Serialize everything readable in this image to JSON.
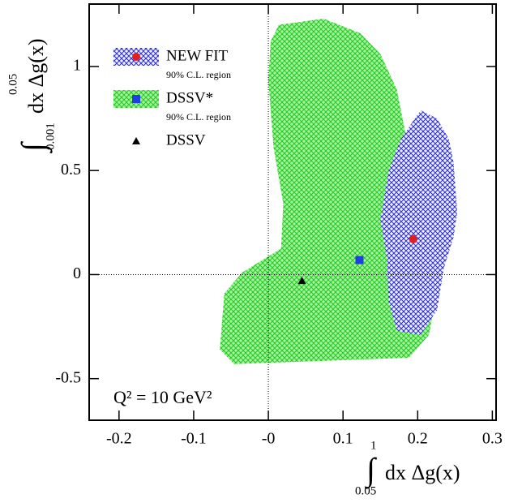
{
  "chart_data": {
    "type": "scatter",
    "xlim": [
      -0.24,
      0.305
    ],
    "ylim": [
      -0.7,
      1.3
    ],
    "xticks": [
      -0.2,
      -0.1,
      {
        "value": 0,
        "label": "-0"
      },
      0.1,
      0.2,
      0.3
    ],
    "yticks": [
      -0.5,
      0,
      0.5,
      1
    ],
    "zero_lines": true,
    "legend": "upper left",
    "x_label": {
      "symbol": "∫",
      "lower": "0.05",
      "upper": "1",
      "text": "dx Δg(x)"
    },
    "y_label": {
      "symbol": "∫",
      "lower": "0.001",
      "upper": "0.05",
      "text": "dx Δg(x)"
    },
    "annotation": "Q² = 10 GeV²",
    "series": [
      {
        "name": "DSSV*",
        "sublabel": "90% C.L. region",
        "color": "#1f3fe0",
        "marker": "square",
        "x": [
          0.122
        ],
        "values": [
          0.07
        ],
        "region": {
          "color": "#22c822",
          "background": "#a6f29e",
          "x": [
            0.014,
            0.074,
            0.123,
            0.15,
            0.172,
            0.183,
            0.204,
            0.232,
            0.215,
            0.188,
            -0.046,
            -0.065,
            -0.059,
            -0.035,
            -0.008,
            0.017,
            0.02,
            0.007,
            0.0,
            0.003
          ],
          "y": [
            1.2,
            1.23,
            1.16,
            1.06,
            0.89,
            0.69,
            0.54,
            0.03,
            -0.29,
            -0.4,
            -0.43,
            -0.36,
            -0.09,
            0.01,
            0.07,
            0.125,
            0.34,
            0.61,
            0.93,
            1.12
          ]
        }
      },
      {
        "name": "NEW FIT",
        "sublabel": "90% C.L. region",
        "color": "#e02020",
        "marker": "circle",
        "x": [
          0.194
        ],
        "values": [
          0.17
        ],
        "region": {
          "color": "#2a2ad0",
          "background": "#eef0ff",
          "x": [
            0.204,
            0.226,
            0.242,
            0.248,
            0.253,
            0.248,
            0.235,
            0.226,
            0.204,
            0.172,
            0.161,
            0.159,
            0.15,
            0.161,
            0.177
          ],
          "y": [
            0.79,
            0.75,
            0.65,
            0.54,
            0.3,
            0.18,
            0.03,
            -0.17,
            -0.29,
            -0.27,
            -0.13,
            0.07,
            0.26,
            0.5,
            0.65
          ]
        }
      },
      {
        "name": "DSSV",
        "color": "#000000",
        "marker": "triangle",
        "x": [
          0.045
        ],
        "values": [
          -0.03
        ]
      }
    ]
  }
}
